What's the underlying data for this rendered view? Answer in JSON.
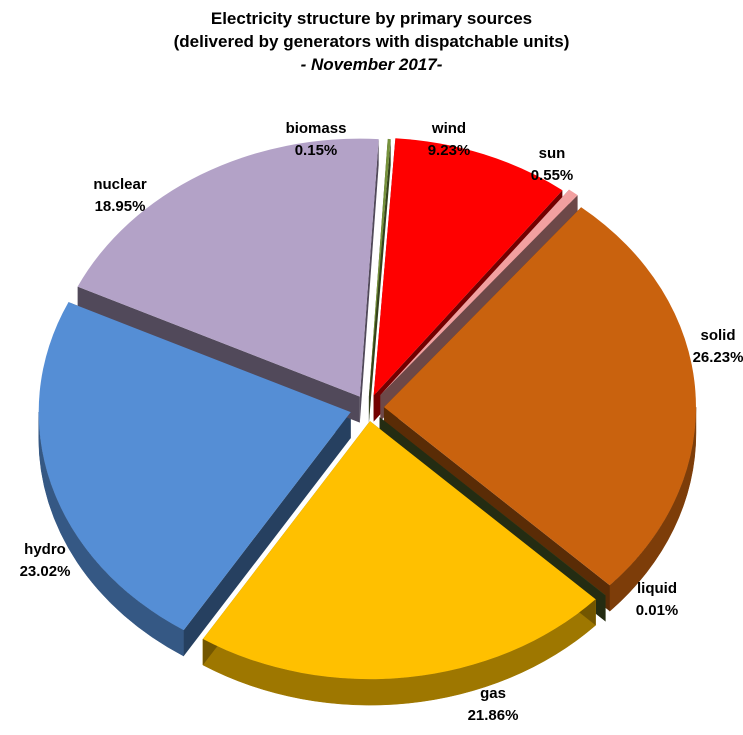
{
  "chart_data": {
    "type": "pie",
    "title": "Electricity structure by primary sources",
    "subtitle": "(delivered by generators with dispatchable units)",
    "period": "- November 2017-",
    "slices": [
      {
        "name": "wind",
        "value": 9.23,
        "label": "9.23%",
        "color": "#ff0000"
      },
      {
        "name": "sun",
        "value": 0.55,
        "label": "0.55%",
        "color": "#f2a0a0"
      },
      {
        "name": "solid",
        "value": 26.23,
        "label": "26.23%",
        "color": "#c9620e"
      },
      {
        "name": "liquid",
        "value": 0.01,
        "label": "0.01%",
        "color": "#4f6228"
      },
      {
        "name": "gas",
        "value": 21.86,
        "label": "21.86%",
        "color": "#ffc000"
      },
      {
        "name": "hydro",
        "value": 23.02,
        "label": "23.02%",
        "color": "#558ed5"
      },
      {
        "name": "nuclear",
        "value": 18.95,
        "label": "18.95%",
        "color": "#b3a2c7"
      },
      {
        "name": "biomass",
        "value": 0.15,
        "label": "0.15%",
        "color": "#76923c"
      }
    ]
  }
}
